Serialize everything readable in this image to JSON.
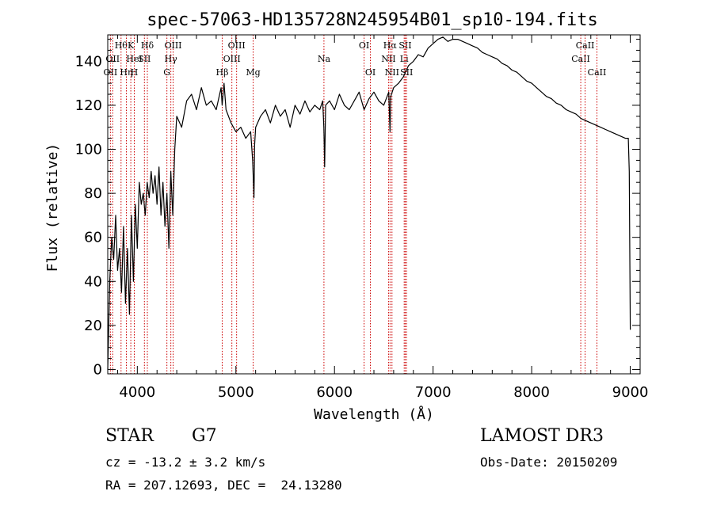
{
  "chart_data": {
    "type": "line",
    "title": "spec-57063-HD135728N245954B01_sp10-194.fits",
    "xlabel": "Wavelength (Å)",
    "ylabel": "Flux (relative)",
    "xlim": [
      3700,
      9100
    ],
    "ylim": [
      -2,
      152
    ],
    "x_ticks": [
      4000,
      5000,
      6000,
      7000,
      8000,
      9000
    ],
    "y_ticks": [
      0,
      20,
      40,
      60,
      80,
      100,
      120,
      140
    ],
    "grid": false,
    "series": [
      {
        "name": "spectrum",
        "color": "#000000",
        "x": [
          3700,
          3720,
          3740,
          3760,
          3780,
          3800,
          3820,
          3840,
          3860,
          3880,
          3900,
          3920,
          3940,
          3960,
          3980,
          4000,
          4020,
          4040,
          4060,
          4080,
          4100,
          4120,
          4140,
          4160,
          4180,
          4200,
          4220,
          4240,
          4260,
          4280,
          4300,
          4320,
          4340,
          4360,
          4380,
          4400,
          4450,
          4500,
          4550,
          4600,
          4650,
          4700,
          4750,
          4800,
          4850,
          4860,
          4880,
          4900,
          4950,
          5000,
          5050,
          5100,
          5150,
          5170,
          5183,
          5190,
          5200,
          5250,
          5300,
          5350,
          5400,
          5450,
          5500,
          5550,
          5600,
          5650,
          5700,
          5750,
          5800,
          5850,
          5880,
          5892,
          5900,
          5910,
          5950,
          6000,
          6050,
          6100,
          6150,
          6200,
          6250,
          6300,
          6350,
          6400,
          6450,
          6500,
          6550,
          6563,
          6570,
          6600,
          6650,
          6700,
          6750,
          6800,
          6850,
          6900,
          6950,
          7000,
          7050,
          7100,
          7150,
          7200,
          7250,
          7300,
          7350,
          7400,
          7450,
          7500,
          7550,
          7600,
          7650,
          7700,
          7750,
          7800,
          7850,
          7900,
          7950,
          8000,
          8050,
          8100,
          8150,
          8200,
          8250,
          8300,
          8350,
          8400,
          8450,
          8500,
          8550,
          8600,
          8650,
          8700,
          8750,
          8800,
          8850,
          8900,
          8950,
          8980,
          8990,
          9000
        ],
        "values": [
          0,
          40,
          60,
          50,
          70,
          45,
          55,
          35,
          65,
          30,
          55,
          25,
          70,
          40,
          75,
          55,
          85,
          75,
          80,
          70,
          85,
          78,
          90,
          80,
          88,
          75,
          92,
          70,
          85,
          65,
          80,
          55,
          90,
          70,
          100,
          115,
          110,
          122,
          125,
          118,
          128,
          120,
          122,
          118,
          128,
          120,
          130,
          118,
          112,
          108,
          110,
          105,
          108,
          95,
          78,
          102,
          110,
          115,
          118,
          112,
          120,
          115,
          118,
          110,
          120,
          116,
          122,
          117,
          120,
          118,
          122,
          110,
          92,
          120,
          122,
          118,
          125,
          120,
          118,
          122,
          126,
          118,
          123,
          126,
          122,
          120,
          126,
          108,
          124,
          128,
          130,
          133,
          138,
          140,
          143,
          142,
          146,
          148,
          150,
          151,
          149,
          150,
          150,
          149,
          148,
          147,
          146,
          144,
          143,
          142,
          141,
          139,
          138,
          136,
          135,
          133,
          131,
          130,
          128,
          126,
          124,
          123,
          121,
          120,
          118,
          117,
          116,
          114,
          113,
          112,
          111,
          110,
          109,
          108,
          107,
          106,
          105,
          105,
          90,
          18
        ]
      }
    ],
    "line_markers": [
      {
        "wavelength": 3727,
        "label": "OII",
        "row": 2
      },
      {
        "wavelength": 3750,
        "label": "OII",
        "row": 1
      },
      {
        "wavelength": 3835,
        "label": "Hθ",
        "row": 0
      },
      {
        "wavelength": 3889,
        "label": "Hη",
        "row": 2
      },
      {
        "wavelength": 3934,
        "label": "K",
        "row": 0
      },
      {
        "wavelength": 3969,
        "label": "H",
        "row": 2
      },
      {
        "wavelength": 3970,
        "label": "HeI",
        "row": 1
      },
      {
        "wavelength": 4072,
        "label": "SII",
        "row": 1
      },
      {
        "wavelength": 4102,
        "label": "Hδ",
        "row": 0
      },
      {
        "wavelength": 4300,
        "label": "G",
        "row": 2
      },
      {
        "wavelength": 4340,
        "label": "Hγ",
        "row": 1
      },
      {
        "wavelength": 4363,
        "label": "OIII",
        "row": 0
      },
      {
        "wavelength": 4861,
        "label": "Hβ",
        "row": 2
      },
      {
        "wavelength": 4959,
        "label": "OIII",
        "row": 1
      },
      {
        "wavelength": 5007,
        "label": "OIII",
        "row": 0
      },
      {
        "wavelength": 5175,
        "label": "Mg",
        "row": 2
      },
      {
        "wavelength": 5893,
        "label": "Na",
        "row": 1
      },
      {
        "wavelength": 6300,
        "label": "OI",
        "row": 0
      },
      {
        "wavelength": 6364,
        "label": "OI",
        "row": 2
      },
      {
        "wavelength": 6548,
        "label": "NII",
        "row": 1
      },
      {
        "wavelength": 6563,
        "label": "Hα",
        "row": 0
      },
      {
        "wavelength": 6583,
        "label": "NII",
        "row": 2
      },
      {
        "wavelength": 6707,
        "label": "Li",
        "row": 1
      },
      {
        "wavelength": 6717,
        "label": "SII",
        "row": 0
      },
      {
        "wavelength": 6731,
        "label": "SII",
        "row": 2
      },
      {
        "wavelength": 8498,
        "label": "CaII",
        "row": 1
      },
      {
        "wavelength": 8542,
        "label": "CaII",
        "row": 0
      },
      {
        "wavelength": 8662,
        "label": "CaII",
        "row": 2
      }
    ],
    "marker_color": "#cc0000"
  },
  "info": {
    "object_class": "STAR",
    "subclass": "G7",
    "survey": "LAMOST DR3",
    "cz": "cz = -13.2 ± 3.2 km/s",
    "obs_date": "Obs-Date: 20150209",
    "coords": "RA = 207.12693, DEC =  24.13280"
  }
}
